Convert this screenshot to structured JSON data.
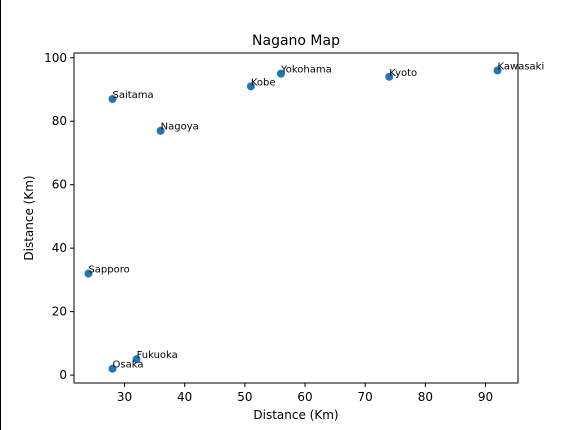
{
  "chart_data": {
    "type": "scatter",
    "title": "Nagano Map",
    "xlabel": "Distance (Km)",
    "ylabel": "Distance (Km)",
    "xlim": [
      21.6,
      95.4
    ],
    "ylim": [
      -2.5,
      101.5
    ],
    "xticks": [
      30,
      40,
      50,
      60,
      70,
      80,
      90
    ],
    "yticks": [
      0,
      20,
      40,
      60,
      80,
      100
    ],
    "grid": false,
    "marker_color": "#1f77b4",
    "points": [
      {
        "label": "Kawasaki",
        "x": 92,
        "y": 96
      },
      {
        "label": "Yokohama",
        "x": 56,
        "y": 95
      },
      {
        "label": "Kyoto",
        "x": 74,
        "y": 94
      },
      {
        "label": "Kobe",
        "x": 51,
        "y": 91
      },
      {
        "label": "Saitama",
        "x": 28,
        "y": 87
      },
      {
        "label": "Nagoya",
        "x": 36,
        "y": 77
      },
      {
        "label": "Sapporo",
        "x": 24,
        "y": 32
      },
      {
        "label": "Fukuoka",
        "x": 32,
        "y": 5
      },
      {
        "label": "Osaka",
        "x": 28,
        "y": 2
      }
    ]
  }
}
